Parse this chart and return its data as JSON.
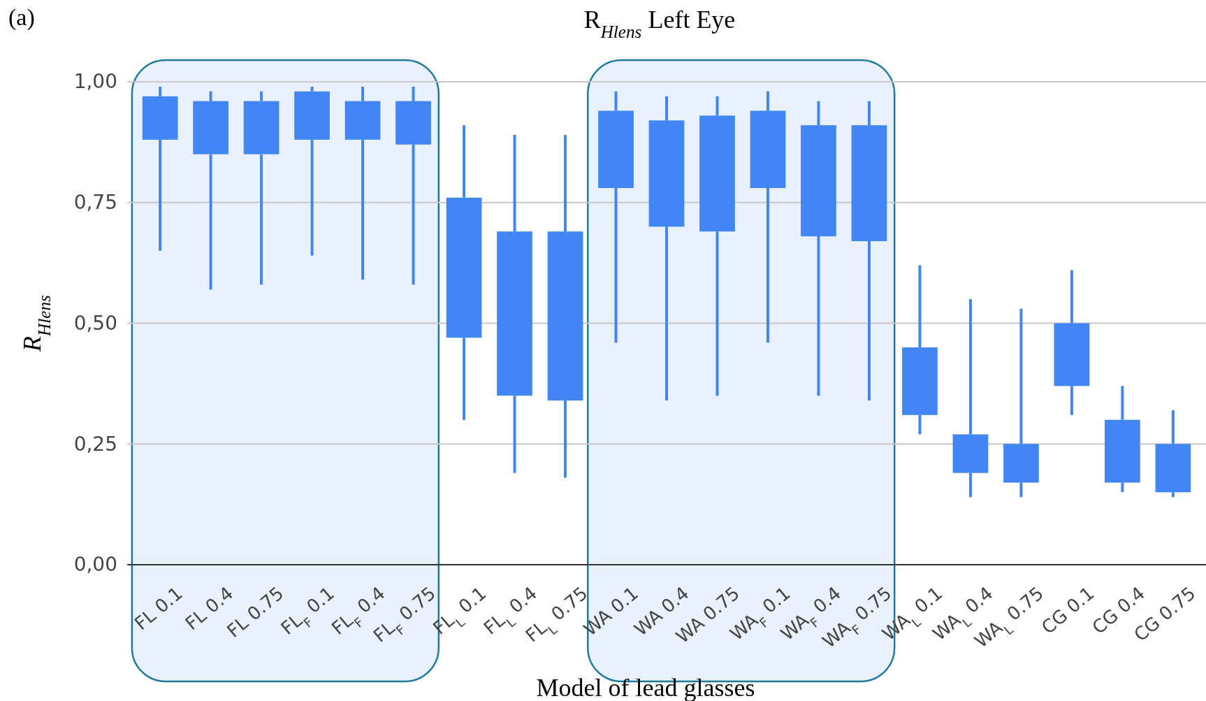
{
  "chart_data": {
    "type": "candlestick",
    "title": "R$_{Hlens}$ Left Eye",
    "xlabel": "Model of lead glasses",
    "ylabel": "R$_{Hlens}$",
    "annotations": [
      "(a)"
    ],
    "categories": [
      "FL 0.1",
      "FL 0.4",
      "FL 0.75",
      "FL$_{F}$ 0.1",
      "FL$_{F}$ 0.4",
      "FL$_{F}$ 0.75",
      "FL$_{L}$ 0.1",
      "FL$_{L}$ 0.4",
      "FL$_{L}$ 0.75",
      "WA 0.1",
      "WA 0.4",
      "WA 0.75",
      "WA$_{F}$ 0.1",
      "WA$_{F}$ 0.4",
      "WA$_{F}$ 0.75",
      "WA$_{L}$ 0.1",
      "WA$_{L}$ 0.4",
      "WA$_{L}$ 0.75",
      "CG 0.1",
      "CG 0.4",
      "CG 0.75"
    ],
    "ohlc": [
      [
        0.88,
        0.99,
        0.65,
        0.97
      ],
      [
        0.85,
        0.98,
        0.57,
        0.96
      ],
      [
        0.85,
        0.98,
        0.58,
        0.96
      ],
      [
        0.88,
        0.99,
        0.64,
        0.98
      ],
      [
        0.88,
        0.99,
        0.59,
        0.96
      ],
      [
        0.87,
        0.99,
        0.58,
        0.96
      ],
      [
        0.47,
        0.91,
        0.3,
        0.76
      ],
      [
        0.35,
        0.89,
        0.19,
        0.69
      ],
      [
        0.34,
        0.89,
        0.18,
        0.69
      ],
      [
        0.78,
        0.98,
        0.46,
        0.94
      ],
      [
        0.7,
        0.97,
        0.34,
        0.92
      ],
      [
        0.69,
        0.97,
        0.35,
        0.93
      ],
      [
        0.78,
        0.98,
        0.46,
        0.94
      ],
      [
        0.68,
        0.96,
        0.35,
        0.91
      ],
      [
        0.67,
        0.96,
        0.34,
        0.91
      ],
      [
        0.31,
        0.62,
        0.27,
        0.45
      ],
      [
        0.19,
        0.55,
        0.14,
        0.27
      ],
      [
        0.17,
        0.53,
        0.14,
        0.25
      ],
      [
        0.37,
        0.61,
        0.31,
        0.5
      ],
      [
        0.17,
        0.37,
        0.15,
        0.3
      ],
      [
        0.15,
        0.32,
        0.14,
        0.25
      ]
    ],
    "color": "#4285f4",
    "ylim": [
      0,
      1
    ],
    "yticks": [
      {
        "value": 0,
        "label": "0,00"
      },
      {
        "value": 0.25,
        "label": "0,25"
      },
      {
        "value": 0.5,
        "label": "0,50"
      },
      {
        "value": 0.75,
        "label": "0,75"
      },
      {
        "value": 1,
        "label": "1,00"
      }
    ],
    "grid": "y"
  }
}
